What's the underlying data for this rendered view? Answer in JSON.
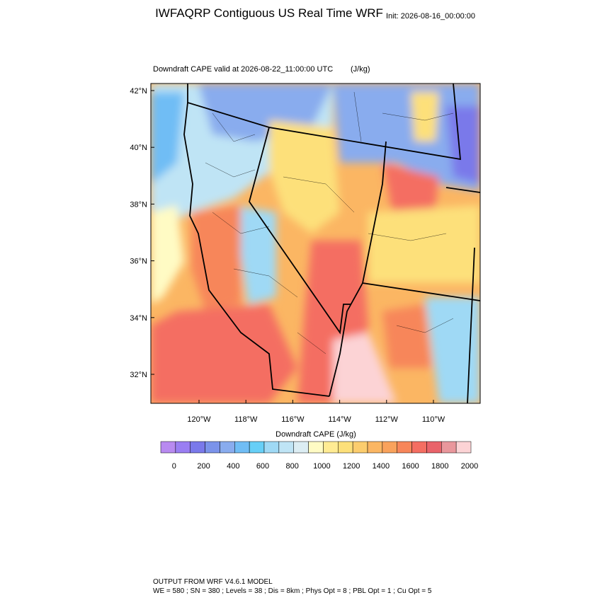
{
  "header": {
    "title": "IWFAQRP Contiguous US Real Time WRF",
    "init": "Init: 2026-08-16_00:00:00"
  },
  "map": {
    "subtitle": "Downdraft CAPE valid at 2026-08-22_11:00:00 UTC",
    "units": "(J/kg)",
    "lat_labels": [
      "42°N",
      "40°N",
      "38°N",
      "36°N",
      "34°N",
      "32°N"
    ],
    "lon_labels": [
      "120°W",
      "118°W",
      "116°W",
      "114°W",
      "112°W",
      "110°W"
    ]
  },
  "colorbar": {
    "title": "Downdraft CAPE  (J/kg)",
    "colors": [
      "#b88af0",
      "#9a7ef2",
      "#7a79ea",
      "#7b93ea",
      "#89acee",
      "#70bdf5",
      "#67cff7",
      "#9fd9f5",
      "#bfe4f5",
      "#dcedf3",
      "#fffbc4",
      "#ffeb93",
      "#fde07a",
      "#fccd6e",
      "#fbb663",
      "#f9a25c",
      "#f7865a",
      "#f46e62",
      "#e9636a",
      "#e9979c",
      "#fcd3d5"
    ],
    "ticks": [
      0,
      200,
      400,
      600,
      800,
      1000,
      1200,
      1400,
      1600,
      1800,
      2000
    ]
  },
  "footer": {
    "line1": "OUTPUT FROM WRF V4.6.1 MODEL",
    "line2": "WE = 580 ; SN = 380 ; Levels = 38 ; Dis = 8km ; Phys Opt = 8 ; PBL Opt = 1 ; Cu Opt = 5"
  }
}
